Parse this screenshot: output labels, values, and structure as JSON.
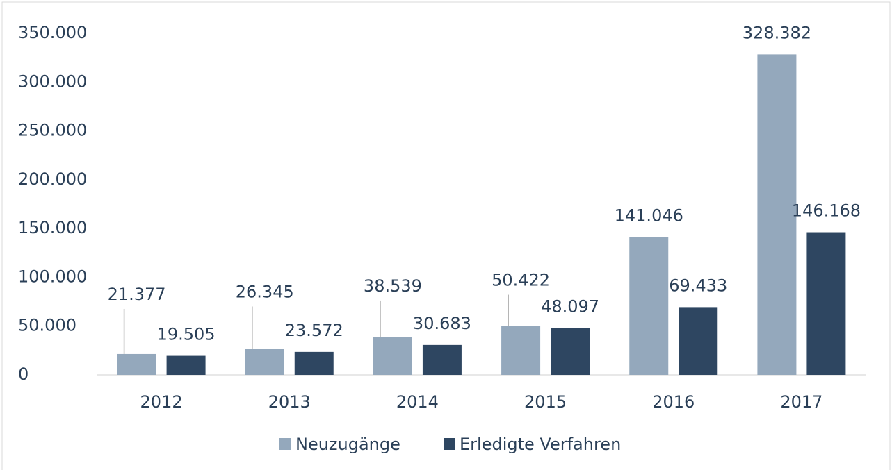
{
  "chart_data": {
    "type": "bar",
    "categories": [
      "2012",
      "2013",
      "2014",
      "2015",
      "2016",
      "2017"
    ],
    "series": [
      {
        "name": "Neuzugänge",
        "color": "#94a8bc",
        "values": [
          21377,
          26345,
          38539,
          50422,
          141046,
          328382
        ],
        "value_labels": [
          "21.377",
          "26.345",
          "38.539",
          "50.422",
          "141.046",
          "328.382"
        ]
      },
      {
        "name": "Erledigte Verfahren",
        "color": "#2e4661",
        "values": [
          19505,
          23572,
          30683,
          48097,
          69433,
          146168
        ],
        "value_labels": [
          "19.505",
          "23.572",
          "30.683",
          "48.097",
          "69.433",
          "146.168"
        ]
      }
    ],
    "ylim": [
      0,
      350000
    ],
    "yticks": [
      0,
      {
        "value": 50000,
        "label": "50.000"
      },
      {
        "value": 100000,
        "label": "100.000"
      },
      {
        "value": 150000,
        "label": "150.000"
      },
      {
        "value": 200000,
        "label": "200.000"
      },
      {
        "value": 250000,
        "label": "250.000"
      },
      {
        "value": 300000,
        "label": "300.000"
      },
      {
        "value": 350000,
        "label": "350.000"
      }
    ],
    "legend": "bottom"
  }
}
